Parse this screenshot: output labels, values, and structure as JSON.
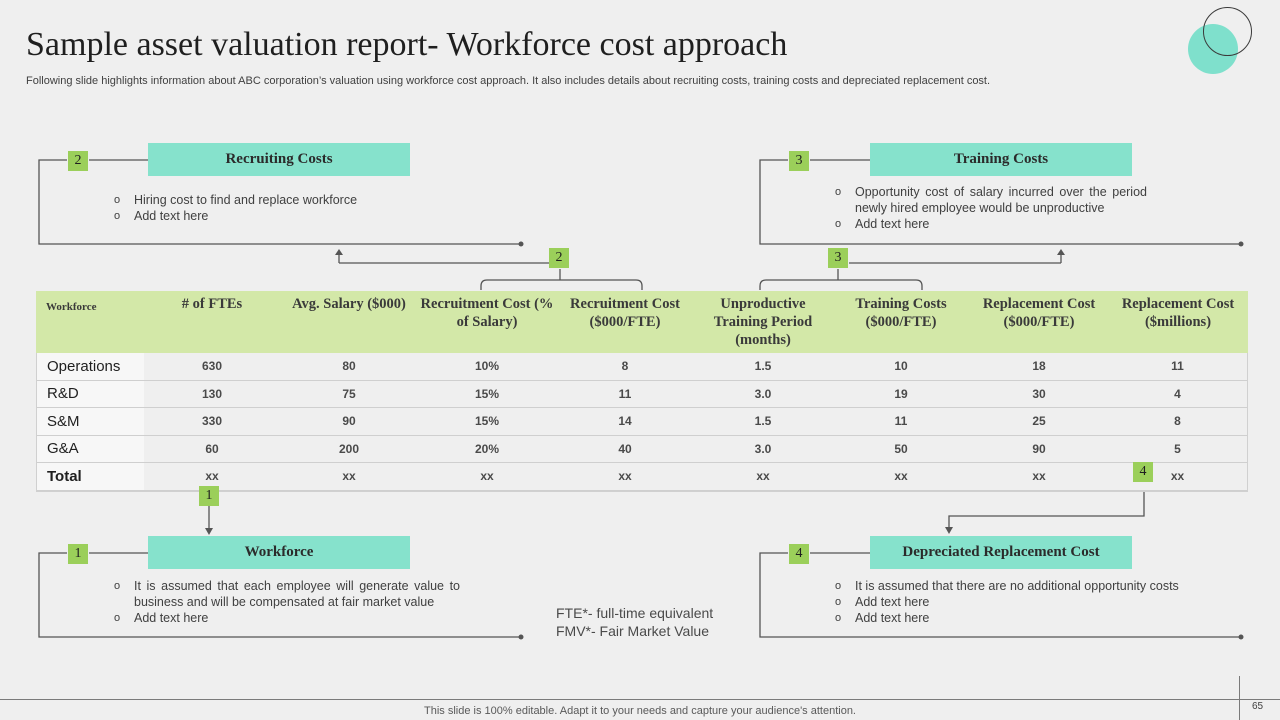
{
  "title": "Sample asset valuation report- Workforce cost approach",
  "subtitle": "Following slide highlights information about ABC corporation’s valuation using workforce cost approach. It also includes details about recruiting costs, training costs and depreciated replacement cost.",
  "sections": {
    "recruiting": {
      "number": "2",
      "heading": "Recruiting Costs",
      "bullets": [
        "Hiring cost to find and replace workforce",
        "Add text here"
      ]
    },
    "training": {
      "number": "3",
      "heading": "Training Costs",
      "bullets": [
        "Opportunity cost of salary incurred over the period newly hired employee would be unproductive",
        "Add text here"
      ]
    },
    "workforce": {
      "number": "1",
      "heading": "Workforce",
      "bullets": [
        "It is assumed that each employee will generate value to business and will be compensated at fair market value",
        "Add text here"
      ]
    },
    "replacement": {
      "number": "4",
      "heading": "Depreciated Replacement Cost",
      "bullets": [
        "It is assumed that there are no additional opportunity costs",
        "Add text here",
        "Add text here"
      ]
    }
  },
  "markers": {
    "m1": "1",
    "m2": "2",
    "m3": "3",
    "m4": "4"
  },
  "table": {
    "headers": [
      "Workforce",
      "# of FTEs",
      "Avg. Salary ($000)",
      "Recruitment Cost (% of Salary)",
      "Recruitment Cost ($000/FTE)",
      "Unproductive Training Period (months)",
      "Training Costs ($000/FTE)",
      "Replacement Cost ($000/FTE)",
      "Replacement Cost ($millions)"
    ],
    "rows": [
      [
        "Operations",
        "630",
        "80",
        "10%",
        "8",
        "1.5",
        "10",
        "18",
        "11"
      ],
      [
        "R&D",
        "130",
        "75",
        "15%",
        "11",
        "3.0",
        "19",
        "30",
        "4"
      ],
      [
        "S&M",
        "330",
        "90",
        "15%",
        "14",
        "1.5",
        "11",
        "25",
        "8"
      ],
      [
        "G&A",
        "60",
        "200",
        "20%",
        "40",
        "3.0",
        "50",
        "90",
        "5"
      ],
      [
        "Total",
        "xx",
        "xx",
        "xx",
        "xx",
        "xx",
        "xx",
        "xx",
        "xx"
      ]
    ]
  },
  "notes": [
    "FTE*- full-time equivalent",
    "FMV*- Fair Market Value"
  ],
  "footer": "This slide is 100% editable. Adapt it to your needs and capture your audience's attention.",
  "page_number": "65",
  "colors": {
    "teal": "#86e2cc",
    "green": "#9bcf5a",
    "table_header": "#d3e8a8"
  }
}
